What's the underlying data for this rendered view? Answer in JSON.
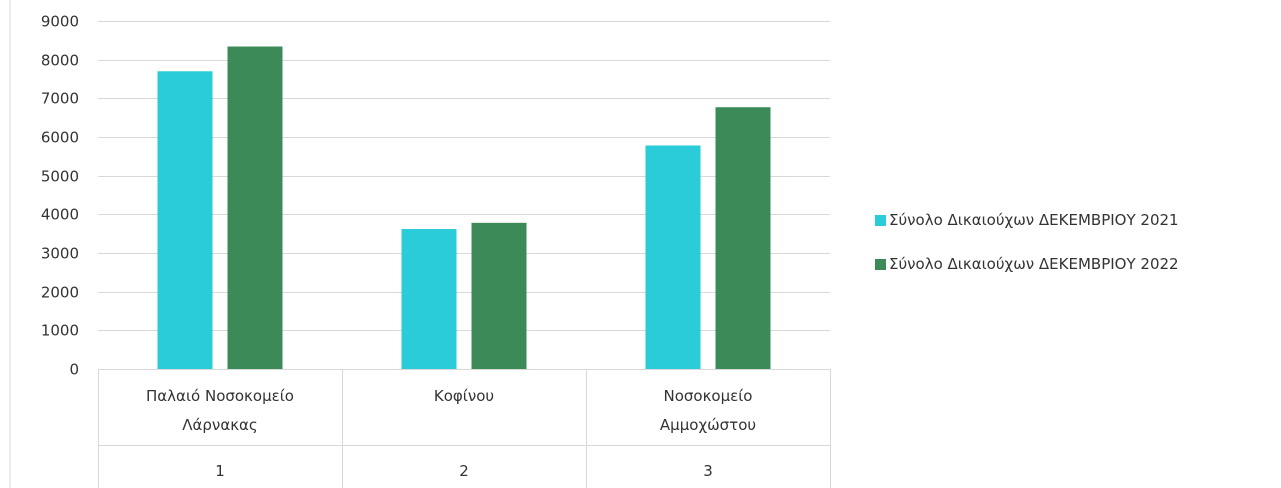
{
  "chart_data": {
    "type": "bar",
    "title": "",
    "xlabel": "",
    "ylabel": "",
    "ylim": [
      0,
      9000
    ],
    "yticks": [
      0,
      1000,
      2000,
      3000,
      4000,
      5000,
      6000,
      7000,
      8000,
      9000
    ],
    "grid": true,
    "legend_position": "right",
    "categories": [
      "Παλαιό Νοσοκομείο Λάρνακας",
      "Κοφίνου",
      "Νοσοκομείο Αμμοχώστου"
    ],
    "category_lines": [
      [
        "Παλαιό Νοσοκομείο",
        "Λάρνακας"
      ],
      [
        "Κοφίνου"
      ],
      [
        "Νοσοκομείο",
        "Αμμοχώστου"
      ]
    ],
    "group_labels": [
      "1",
      "2",
      "3"
    ],
    "series": [
      {
        "name": "Σύνολο Δικαιούχων ΔΕΚΕΜΒΡΙΟΥ 2021",
        "color": "#29CCD8",
        "values": [
          7700,
          3620,
          5780
        ]
      },
      {
        "name": "Σύνολο Δικαιούχων ΔΕΚΕΜΒΡΙΟΥ 2022",
        "color": "#3B8A58",
        "values": [
          8340,
          3780,
          6770
        ]
      }
    ]
  }
}
